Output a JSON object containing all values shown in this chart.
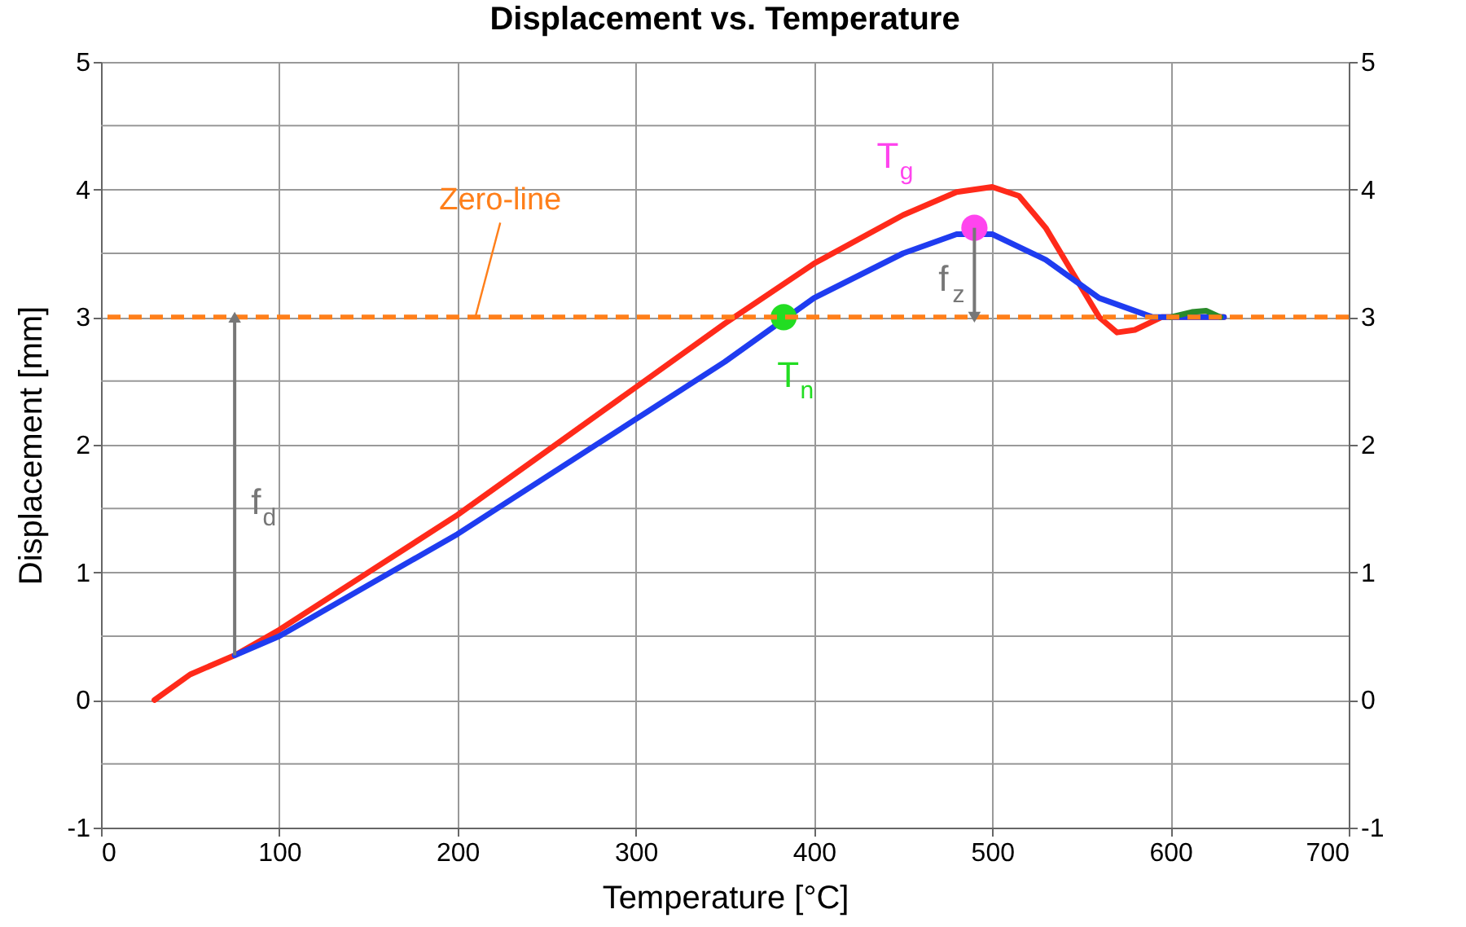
{
  "chart_data": {
    "type": "line",
    "title": "Displacement vs. Temperature",
    "xlabel": "Temperature [°C]",
    "ylabel": "Displacement [mm]",
    "xlim": [
      0,
      700
    ],
    "xticks": [
      0,
      100,
      200,
      300,
      400,
      500,
      600,
      700
    ],
    "ylim": [
      -1,
      5
    ],
    "yticks": [
      -1,
      {
        "value": -0.5,
        "label": null
      },
      0,
      {
        "value": 0.5,
        "label": null
      },
      1,
      {
        "value": 1.5,
        "label": null
      },
      2,
      {
        "value": 2.5,
        "label": null
      },
      3,
      {
        "value": 3.5,
        "label": null
      },
      4,
      {
        "value": 4.5,
        "label": null
      },
      5
    ],
    "y2lim": [
      -1,
      5
    ],
    "y2ticks": [
      -1,
      0,
      1,
      2,
      3,
      4,
      5
    ],
    "grid": true,
    "line_style": "solid",
    "marker": "none",
    "series": [
      {
        "color": "#ff2a1a",
        "x": [
          30,
          50,
          75,
          100,
          150,
          200,
          250,
          300,
          350,
          400,
          450,
          480,
          500,
          515,
          530,
          545,
          560,
          570,
          580,
          595,
          620,
          630
        ],
        "values": [
          0.0,
          0.2,
          0.35,
          0.55,
          1.0,
          1.45,
          1.95,
          2.45,
          2.95,
          3.42,
          3.8,
          3.98,
          4.02,
          3.95,
          3.7,
          3.35,
          3.0,
          2.88,
          2.9,
          3.0,
          3.0,
          3.0
        ]
      },
      {
        "color": "#1f3cf0",
        "x": [
          75,
          100,
          150,
          200,
          250,
          300,
          350,
          400,
          450,
          480,
          500,
          530,
          560,
          590,
          630
        ],
        "values": [
          0.35,
          0.5,
          0.9,
          1.3,
          1.75,
          2.2,
          2.65,
          3.15,
          3.5,
          3.65,
          3.65,
          3.45,
          3.15,
          3.0,
          3.0
        ]
      },
      {
        "color": "#2a8a2a",
        "x": [
          600,
          612,
          620,
          628
        ],
        "values": [
          3.0,
          3.04,
          3.05,
          3.0
        ]
      },
      {
        "type": "scatter",
        "marker": "circle",
        "color": "#22dd22",
        "x": [
          383
        ],
        "values": [
          3.0
        ]
      },
      {
        "type": "scatter",
        "marker": "circle",
        "color": "#ff44ee",
        "x": [
          490
        ],
        "values": [
          3.7
        ]
      }
    ],
    "ref_lines": [
      {
        "axis": "y",
        "value": 3,
        "label": "Zero-line",
        "color": "#ff7f1a",
        "line_style": "dashed"
      }
    ],
    "annotations": [
      "f$_{d}$",
      "f$_{z}$",
      {
        "text": "T$_{n}$",
        "x": 383,
        "y": 3.0
      },
      {
        "text": "T$_{g}$",
        "x": 490,
        "y": 3.7
      }
    ]
  }
}
